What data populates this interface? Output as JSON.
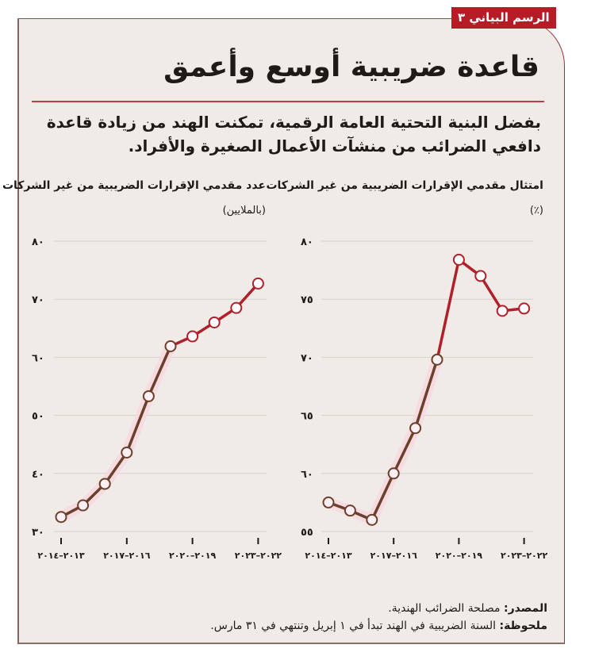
{
  "badge": {
    "label": "الرسم البياني ٣"
  },
  "header": {
    "title": "قاعدة ضريبية أوسع وأعمق",
    "subtitle": "بفضل البنية التحتية العامة الرقمية، تمكنت الهند من زيادة قاعدة دافعي الضرائب من منشآت الأعمال الصغيرة والأفراد."
  },
  "footer": {
    "source_label": "المصدر:",
    "source_text": "مصلحة الضرائب الهندية.",
    "note_label": "ملحوظة:",
    "note_text": "السنة الضريبية في الهند تبدأ في ١ إبريل وتنتهي في ٣١ مارس."
  },
  "colors": {
    "background": "#f0ebe7",
    "accent_red": "#b51c26",
    "line_early": "#6b3f2a",
    "line_late": "#b0202a",
    "highlight": "#f8d9e0",
    "gridline": "#d8d2cd"
  },
  "chart_data": [
    {
      "type": "line",
      "title": "عدد مقدمي الإقرارات الضريبية من غير الشركات",
      "unit": "(بالملايين)",
      "xlabel": "",
      "ylabel": "بالملايين",
      "ylim": [
        30,
        80
      ],
      "yticks": [
        30,
        40,
        50,
        60,
        70,
        80
      ],
      "ytick_labels": [
        "٣٠",
        "٤٠",
        "٥٠",
        "٦٠",
        "٧٠",
        "٨٠"
      ],
      "xtick_labels": [
        "٢٠١٣–٢٠١٤",
        "٢٠١٦–٢٠١٧",
        "٢٠١٩–٢٠٢٠",
        "٢٠٢٢–٢٠٢٣"
      ],
      "x": [
        "2013-14",
        "2014-15",
        "2015-16",
        "2016-17",
        "2017-18",
        "2018-19",
        "2019-20",
        "2020-21",
        "2021-22",
        "2022-23"
      ],
      "values": [
        32.5,
        34.5,
        38.2,
        43.6,
        53.3,
        61.9,
        63.6,
        66.0,
        68.5,
        72.7
      ],
      "grid": true,
      "color_change_index": 5
    },
    {
      "type": "line",
      "title": "امتثال مقدمي الإقرارات الضريبية من غير الشركات",
      "unit": "(٪)",
      "xlabel": "",
      "ylabel": "٪",
      "ylim": [
        55,
        80
      ],
      "yticks": [
        55,
        60,
        65,
        70,
        75,
        80
      ],
      "ytick_labels": [
        "٥٥",
        "٦٠",
        "٦٥",
        "٧٠",
        "٧٥",
        "٨٠"
      ],
      "xtick_labels": [
        "٢٠١٣–٢٠١٤",
        "٢٠١٦–٢٠١٧",
        "٢٠١٩–٢٠٢٠",
        "٢٠٢٢–٢٠٢٣"
      ],
      "x": [
        "2013-14",
        "2014-15",
        "2015-16",
        "2016-17",
        "2017-18",
        "2018-19",
        "2019-20",
        "2020-21",
        "2021-22",
        "2022-23"
      ],
      "values": [
        57.5,
        56.8,
        56.0,
        60.0,
        63.9,
        69.8,
        78.4,
        77.0,
        74.0,
        74.2
      ],
      "grid": true,
      "color_change_index": 5
    }
  ]
}
